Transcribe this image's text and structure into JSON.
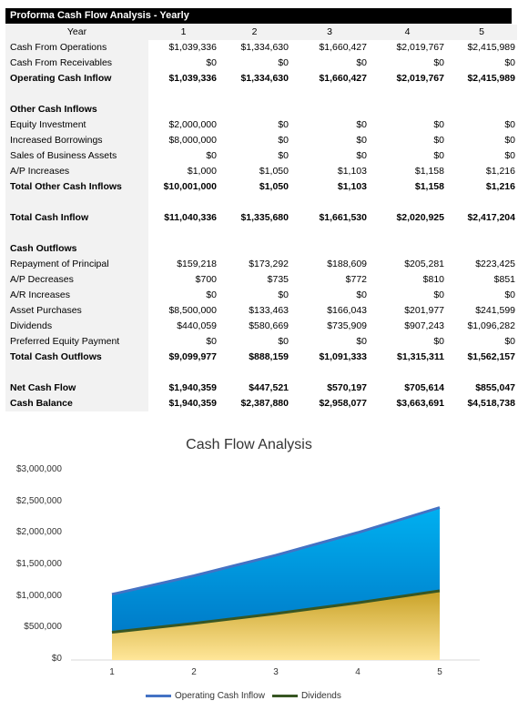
{
  "table": {
    "title": "Proforma Cash Flow Analysis - Yearly",
    "year_label": "Year",
    "years": [
      "1",
      "2",
      "3",
      "4",
      "5"
    ],
    "rows": [
      {
        "label": "Cash From Operations",
        "values": [
          "$1,039,336",
          "$1,334,630",
          "$1,660,427",
          "$2,019,767",
          "$2,415,989"
        ]
      },
      {
        "label": "Cash From Receivables",
        "values": [
          "$0",
          "$0",
          "$0",
          "$0",
          "$0"
        ]
      },
      {
        "label": "Operating Cash Inflow",
        "values": [
          "$1,039,336",
          "$1,334,630",
          "$1,660,427",
          "$2,019,767",
          "$2,415,989"
        ]
      },
      {
        "label": "Other Cash Inflows"
      },
      {
        "label": "Equity Investment",
        "values": [
          "$2,000,000",
          "$0",
          "$0",
          "$0",
          "$0"
        ]
      },
      {
        "label": "Increased Borrowings",
        "values": [
          "$8,000,000",
          "$0",
          "$0",
          "$0",
          "$0"
        ]
      },
      {
        "label": "Sales of Business Assets",
        "values": [
          "$0",
          "$0",
          "$0",
          "$0",
          "$0"
        ]
      },
      {
        "label": "A/P Increases",
        "values": [
          "$1,000",
          "$1,050",
          "$1,103",
          "$1,158",
          "$1,216"
        ]
      },
      {
        "label": "Total Other Cash Inflows",
        "values": [
          "$10,001,000",
          "$1,050",
          "$1,103",
          "$1,158",
          "$1,216"
        ]
      },
      {
        "label": "Total Cash Inflow",
        "values": [
          "$11,040,336",
          "$1,335,680",
          "$1,661,530",
          "$2,020,925",
          "$2,417,204"
        ]
      },
      {
        "label": "Cash Outflows"
      },
      {
        "label": "Repayment of Principal",
        "values": [
          "$159,218",
          "$173,292",
          "$188,609",
          "$205,281",
          "$223,425"
        ]
      },
      {
        "label": "A/P Decreases",
        "values": [
          "$700",
          "$735",
          "$772",
          "$810",
          "$851"
        ]
      },
      {
        "label": "A/R Increases",
        "values": [
          "$0",
          "$0",
          "$0",
          "$0",
          "$0"
        ]
      },
      {
        "label": "Asset Purchases",
        "values": [
          "$8,500,000",
          "$133,463",
          "$166,043",
          "$201,977",
          "$241,599"
        ]
      },
      {
        "label": "Dividends",
        "values": [
          "$440,059",
          "$580,669",
          "$735,909",
          "$907,243",
          "$1,096,282"
        ]
      },
      {
        "label": "Preferred Equity Payment",
        "values": [
          "$0",
          "$0",
          "$0",
          "$0",
          "$0"
        ]
      },
      {
        "label": "Total Cash Outflows",
        "values": [
          "$9,099,977",
          "$888,159",
          "$1,091,333",
          "$1,315,311",
          "$1,562,157"
        ]
      },
      {
        "label": "Net Cash Flow",
        "values": [
          "$1,940,359",
          "$447,521",
          "$570,197",
          "$705,614",
          "$855,047"
        ]
      },
      {
        "label": "Cash Balance",
        "values": [
          "$1,940,359",
          "$2,387,880",
          "$2,958,077",
          "$3,663,691",
          "$4,518,738"
        ]
      }
    ]
  },
  "chart_data": {
    "type": "area",
    "title": "Cash Flow Analysis",
    "x": [
      1,
      2,
      3,
      4,
      5
    ],
    "series": [
      {
        "name": "Operating Cash Inflow",
        "values": [
          1039336,
          1334630,
          1660427,
          2019767,
          2415989
        ],
        "line_color": "#4472c4",
        "fill_top": "#00b0f0",
        "fill_bottom": "#0070c0"
      },
      {
        "name": "Dividends",
        "values": [
          440059,
          580669,
          735909,
          907243,
          1096282
        ],
        "line_color": "#375623",
        "fill_top": "#c9a227",
        "fill_bottom": "#ffe699"
      }
    ],
    "yticks": [
      "$3,000,000",
      "$2,500,000",
      "$2,000,000",
      "$1,500,000",
      "$1,000,000",
      "$500,000",
      "$0"
    ],
    "ylim": [
      0,
      3000000
    ],
    "grid": false,
    "legend_position": "bottom"
  }
}
